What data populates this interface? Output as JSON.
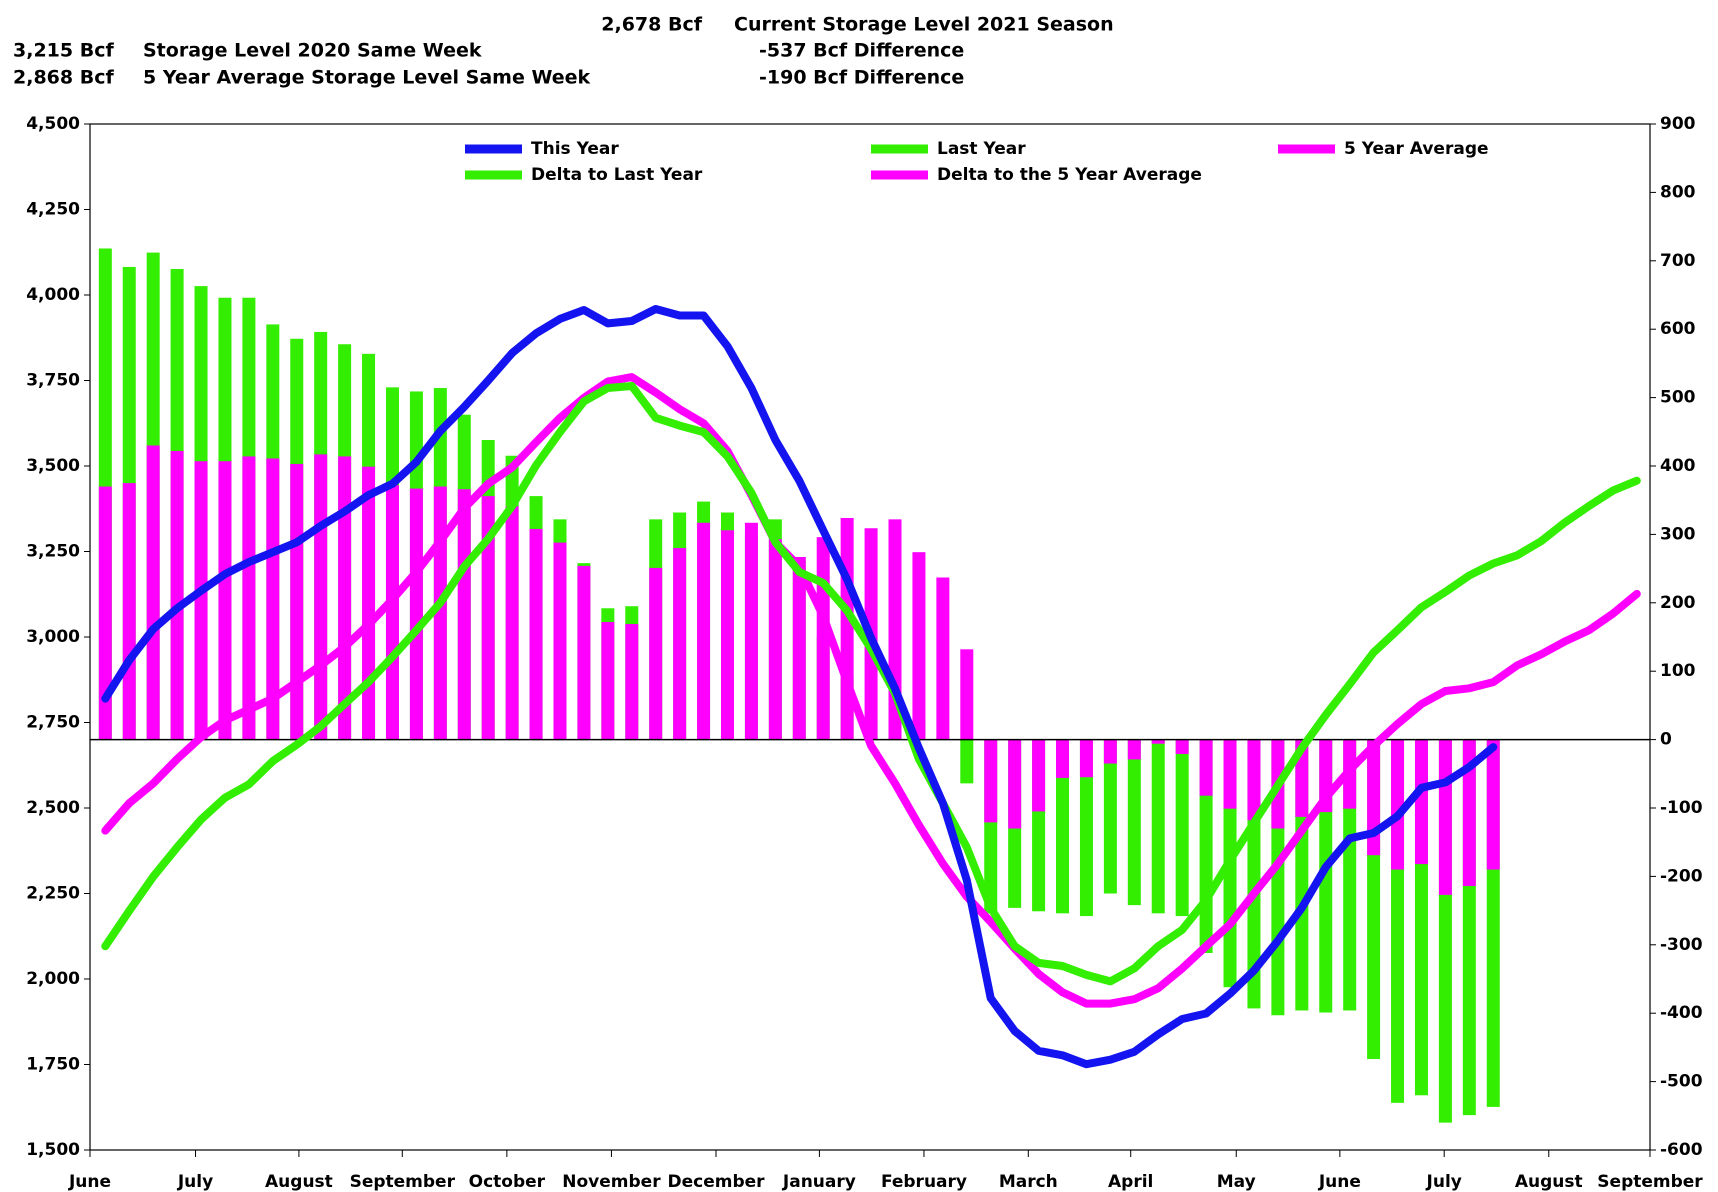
{
  "chart_data": {
    "type": "line",
    "header": [
      [
        "2,678 Bcf",
        "Current Storage Level 2021 Season"
      ],
      [
        "3,215 Bcf",
        "Storage Level 2020 Same Week",
        "-537 Bcf Difference"
      ],
      [
        "2,868 Bcf",
        "5 Year Average Storage Level Same Week",
        "-190 Bcf Difference"
      ]
    ],
    "x": [
      1,
      2,
      3,
      4,
      5,
      6,
      7,
      8,
      9,
      10,
      11,
      12,
      13,
      14,
      15,
      16,
      17,
      18,
      19,
      20,
      21,
      22,
      23,
      24,
      25,
      26,
      27,
      28,
      29,
      30,
      31,
      32,
      33,
      34,
      35,
      36,
      37,
      38,
      39,
      40,
      41,
      42,
      43,
      44,
      45,
      46,
      47,
      48,
      49,
      50,
      51,
      52,
      53,
      54,
      55,
      56,
      57,
      58,
      59,
      60,
      61,
      62,
      63,
      64,
      65
    ],
    "xlim": [
      0.36,
      65.55
    ],
    "xticks": [
      {
        "value": 0.36,
        "label": "June"
      },
      {
        "value": 4.77,
        "label": "July"
      },
      {
        "value": 9.09,
        "label": "August"
      },
      {
        "value": 13.41,
        "label": "September"
      },
      {
        "value": 17.78,
        "label": "October"
      },
      {
        "value": 22.15,
        "label": "November"
      },
      {
        "value": 26.52,
        "label": "December"
      },
      {
        "value": 30.84,
        "label": "January"
      },
      {
        "value": 35.21,
        "label": "February"
      },
      {
        "value": 39.57,
        "label": "March"
      },
      {
        "value": 43.85,
        "label": "April"
      },
      {
        "value": 48.26,
        "label": "May"
      },
      {
        "value": 52.59,
        "label": "June"
      },
      {
        "value": 56.95,
        "label": "July"
      },
      {
        "value": 61.32,
        "label": "August"
      },
      {
        "value": 65.55,
        "label": "September"
      }
    ],
    "ylim": [
      1500,
      4500
    ],
    "yticks": [
      {
        "value": 1500,
        "label": "1,500"
      },
      {
        "value": 1750,
        "label": "1,750"
      },
      {
        "value": 2000,
        "label": "2,000"
      },
      {
        "value": 2250,
        "label": "2,250"
      },
      {
        "value": 2500,
        "label": "2,500"
      },
      {
        "value": 2750,
        "label": "2,750"
      },
      {
        "value": 3000,
        "label": "3,000"
      },
      {
        "value": 3250,
        "label": "3,250"
      },
      {
        "value": 3500,
        "label": "3,500"
      },
      {
        "value": 3750,
        "label": "3,750"
      },
      {
        "value": 4000,
        "label": "4,000"
      },
      {
        "value": 4250,
        "label": "4,250"
      },
      {
        "value": 4500,
        "label": "4,500"
      }
    ],
    "y2lim": [
      -600,
      900
    ],
    "y2ticks": [
      -600,
      -500,
      -400,
      -300,
      -200,
      -100,
      0,
      100,
      200,
      300,
      400,
      500,
      600,
      700,
      800,
      900
    ],
    "series": [
      {
        "name": "This Year",
        "type": "line",
        "color": "#1414f0",
        "values": [
          2820,
          2932,
          3023,
          3084,
          3135,
          3184,
          3219,
          3248,
          3277,
          3325,
          3367,
          3415,
          3448,
          3512,
          3602,
          3673,
          3750,
          3830,
          3888,
          3930,
          3956,
          3917,
          3924,
          3959,
          3940,
          3940,
          3850,
          3728,
          3576,
          3457,
          3312,
          3168,
          2997,
          2849,
          2675,
          2514,
          2289,
          1944,
          1848,
          1790,
          1777,
          1751,
          1764,
          1787,
          1838,
          1883,
          1899,
          1957,
          2025,
          2112,
          2208,
          2327,
          2411,
          2427,
          2476,
          2559,
          2575,
          2620,
          2678,
          null,
          null,
          null,
          null,
          null,
          null
        ]
      },
      {
        "name": "Last Year",
        "type": "line",
        "color": "#33ee00",
        "values": [
          2096,
          2199,
          2299,
          2385,
          2466,
          2530,
          2569,
          2637,
          2685,
          2739,
          2804,
          2868,
          2942,
          3020,
          3100,
          3206,
          3287,
          3383,
          3502,
          3599,
          3689,
          3728,
          3734,
          3641,
          3618,
          3599,
          3528,
          3422,
          3277,
          3190,
          3158,
          3077,
          2965,
          2836,
          2643,
          2514,
          2385,
          2208,
          2096,
          2047,
          2038,
          2012,
          1993,
          2031,
          2096,
          2144,
          2231,
          2347,
          2457,
          2566,
          2675,
          2772,
          2862,
          2955,
          3020,
          3087,
          3132,
          3180,
          3215,
          3239,
          3280,
          3335,
          3383,
          3428,
          3457
        ]
      },
      {
        "name": "5 Year Average",
        "type": "line",
        "color": "#ff00ff",
        "values": [
          2434,
          2514,
          2572,
          2643,
          2707,
          2756,
          2788,
          2820,
          2868,
          2917,
          2971,
          3036,
          3110,
          3190,
          3280,
          3377,
          3448,
          3496,
          3570,
          3641,
          3699,
          3747,
          3760,
          3715,
          3666,
          3625,
          3544,
          3415,
          3277,
          3206,
          3061,
          2868,
          2682,
          2572,
          2450,
          2337,
          2241,
          2167,
          2089,
          2015,
          1961,
          1928,
          1928,
          1941,
          1973,
          2031,
          2096,
          2160,
          2250,
          2337,
          2434,
          2530,
          2611,
          2682,
          2746,
          2804,
          2842,
          2850,
          2868,
          2917,
          2949,
          2987,
          3020,
          3068,
          3126
        ]
      },
      {
        "name": "Delta to Last Year",
        "type": "bar",
        "axis": "y2",
        "color": "#33ee00",
        "values": [
          718,
          691,
          712,
          688,
          663,
          646,
          646,
          607,
          586,
          596,
          578,
          564,
          515,
          509,
          514,
          475,
          438,
          415,
          356,
          322,
          258,
          192,
          195,
          322,
          332,
          348,
          332,
          300,
          322,
          262,
          150,
          90,
          30,
          13,
          30,
          5,
          -64,
          -254,
          -246,
          -251,
          -254,
          -258,
          -225,
          -242,
          -254,
          -258,
          -312,
          -362,
          -393,
          -403,
          -396,
          -399,
          -396,
          -467,
          -531,
          -520,
          -560,
          -549,
          -537,
          null,
          null,
          null,
          null,
          null,
          null
        ]
      },
      {
        "name": "Delta to the 5 Year Average",
        "type": "bar",
        "axis": "y2",
        "color": "#ff00ff",
        "values": [
          370,
          375,
          430,
          422,
          407,
          407,
          414,
          411,
          403,
          417,
          414,
          399,
          372,
          367,
          370,
          366,
          356,
          341,
          308,
          288,
          254,
          172,
          169,
          251,
          280,
          317,
          306,
          317,
          293,
          267,
          296,
          324,
          309,
          322,
          274,
          237,
          132,
          -121,
          -130,
          -105,
          -56,
          -55,
          -35,
          -29,
          -6,
          -21,
          -82,
          -101,
          -118,
          -130,
          -113,
          -106,
          -101,
          -169,
          -190,
          -182,
          -227,
          -214,
          -190,
          null,
          null,
          null,
          null,
          null,
          null
        ]
      }
    ]
  }
}
